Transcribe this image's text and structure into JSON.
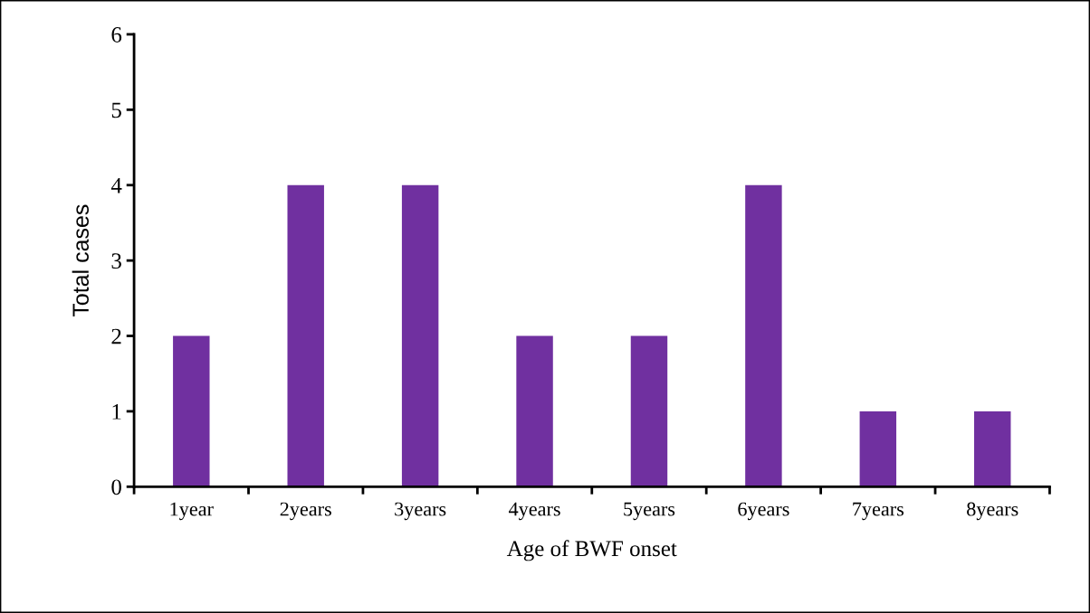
{
  "chart_data": {
    "type": "bar",
    "xlabel": "Age of BWF onset",
    "ylabel": "Total cases",
    "categories": [
      "1year",
      "2years",
      "3years",
      "4years",
      "5years",
      "6years",
      "7years",
      "8years"
    ],
    "values": [
      2,
      4,
      4,
      2,
      2,
      4,
      1,
      1
    ],
    "color": "#7030a0",
    "ylim": [
      0,
      6
    ],
    "yticks": [
      0,
      1,
      2,
      3,
      4,
      5,
      6
    ],
    "grid": false,
    "legend": false
  }
}
